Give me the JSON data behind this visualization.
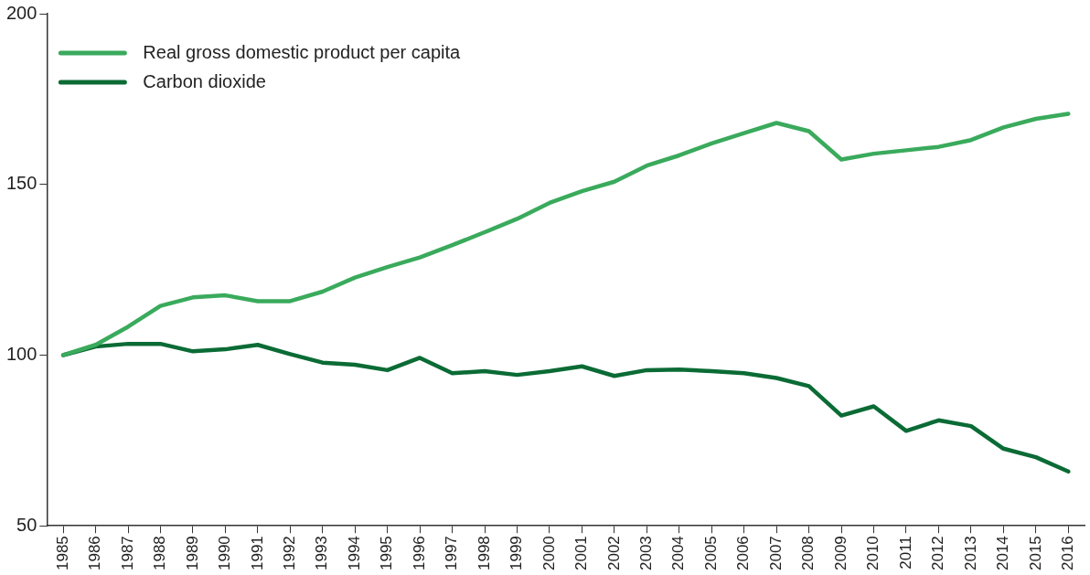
{
  "chart_data": {
    "type": "line",
    "categories": [
      "1985",
      "1986",
      "1987",
      "1988",
      "1989",
      "1990",
      "1991",
      "1992",
      "1993",
      "1994",
      "1995",
      "1996",
      "1997",
      "1998",
      "1999",
      "2000",
      "2001",
      "2002",
      "2003",
      "2004",
      "2005",
      "2006",
      "2007",
      "2008",
      "2009",
      "2010",
      "2011",
      "2012",
      "2013",
      "2014",
      "2015",
      "2016"
    ],
    "series": [
      {
        "name": "Real gross domestic product per capita",
        "color": "#3aaa5c",
        "values": [
          100,
          103,
          108.3,
          114.4,
          116.9,
          117.5,
          115.8,
          115.8,
          118.6,
          122.7,
          125.8,
          128.6,
          132.2,
          136,
          139.9,
          144.6,
          148,
          150.8,
          155.5,
          158.5,
          162,
          165,
          168,
          165.6,
          157.3,
          159,
          160,
          161,
          163,
          166.7,
          169.2,
          170.7
        ]
      },
      {
        "name": "Carbon dioxide",
        "color": "#0b6b35",
        "values": [
          100,
          102.5,
          103.3,
          103.3,
          101.1,
          101.7,
          103,
          100.3,
          97.8,
          97.2,
          95.6,
          99.2,
          94.7,
          95.3,
          94.2,
          95.3,
          96.7,
          93.9,
          95.6,
          95.8,
          95.3,
          94.7,
          93.3,
          90.9,
          82.3,
          85,
          77.8,
          80.9,
          79.2,
          72.6,
          70.1,
          65.9
        ]
      }
    ],
    "ylim": [
      50,
      200
    ],
    "yticks": [
      50,
      100,
      150,
      200
    ],
    "grid": false,
    "legend": "top left",
    "marker": "none",
    "line_style": "solid"
  }
}
